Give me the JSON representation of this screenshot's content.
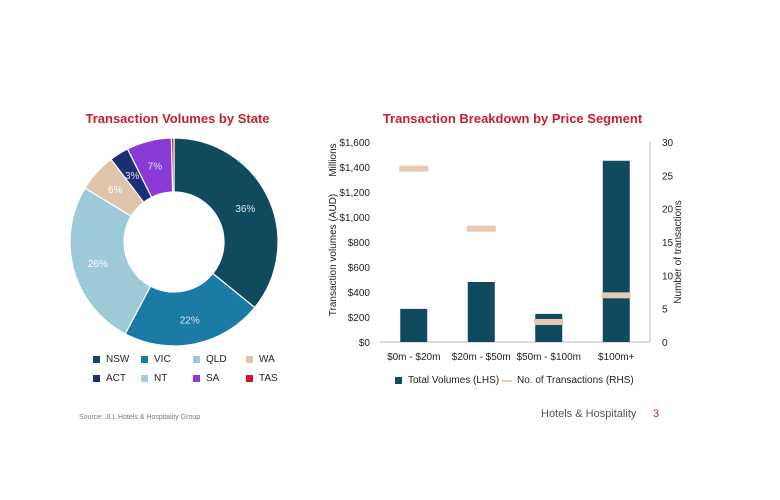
{
  "chart_data": [
    {
      "type": "pie",
      "title": "Transaction Volumes by State",
      "donut": true,
      "slices": [
        {
          "label": "NSW",
          "value": 36,
          "display": "36%",
          "color": "#0f4a5e"
        },
        {
          "label": "VIC",
          "value": 22,
          "display": "22%",
          "color": "#1a7ca4"
        },
        {
          "label": "QLD",
          "value": 26,
          "display": "26%",
          "color": "#9ecad8"
        },
        {
          "label": "WA",
          "value": 6,
          "display": "6%",
          "color": "#dec4aa"
        },
        {
          "label": "ACT",
          "value": 3,
          "display": "3%",
          "color": "#1b2f77"
        },
        {
          "label": "NT",
          "value": 0,
          "display": "",
          "color": "#a9cde0"
        },
        {
          "label": "SA",
          "value": 7,
          "display": "7%",
          "color": "#8a3ad6"
        },
        {
          "label": "TAS",
          "value": 0.4,
          "display": "",
          "color": "#d0152a"
        }
      ],
      "legend_order": [
        "NSW",
        "VIC",
        "QLD",
        "WA",
        "ACT",
        "NT",
        "SA",
        "TAS"
      ],
      "legend_position": "bottom"
    },
    {
      "type": "bar",
      "title": "Transaction Breakdown by Price Segment",
      "categories": [
        "$0m - $20m",
        "$20m - $50m",
        "$50m - $100m",
        "$100m+"
      ],
      "series": [
        {
          "name": "Total Volumes (LHS)",
          "axis": "left",
          "type": "bar",
          "color": "#0f4a5e",
          "values": [
            265,
            480,
            225,
            1450
          ]
        },
        {
          "name": "No. of Transactions (RHS)",
          "axis": "right",
          "type": "marker",
          "color": "#e6c9b4",
          "values": [
            26,
            17,
            3,
            7
          ]
        }
      ],
      "ylabel": "Transaction volumes (AUD)",
      "ylabel_unit": "Millions",
      "ylim": [
        0,
        1600
      ],
      "yticks": [
        "$0",
        "$200",
        "$400",
        "$600",
        "$800",
        "$1,000",
        "$1,200",
        "$1,400",
        "$1,600"
      ],
      "y2label": "Number of transactions",
      "y2lim": [
        0,
        30
      ],
      "y2ticks": [
        "0",
        "5",
        "10",
        "15",
        "20",
        "25",
        "30"
      ],
      "legend_position": "bottom"
    }
  ],
  "footer": {
    "source": "Source: JLL Hotels & Hospitality Group",
    "section": "Hotels & Hospitality",
    "page": "3"
  }
}
